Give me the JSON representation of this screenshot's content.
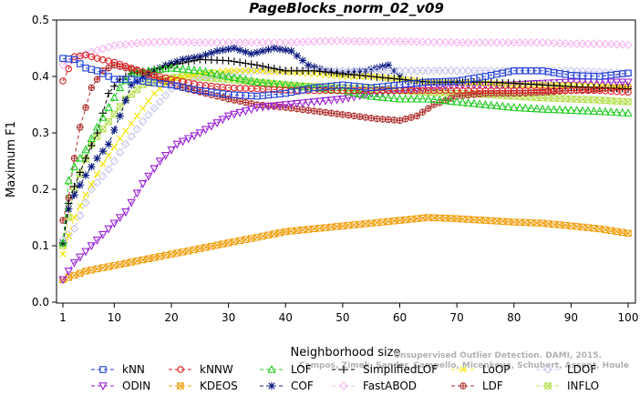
{
  "chart_data": {
    "type": "line",
    "title": "PageBlocks_norm_02_v09",
    "xlabel": "Neighborhood size",
    "ylabel": "Maximum F1",
    "xlim": [
      1,
      100
    ],
    "ylim": [
      0.0,
      0.5
    ],
    "x_ticks": [
      1,
      10,
      20,
      30,
      40,
      50,
      60,
      70,
      80,
      90,
      100
    ],
    "y_ticks": [
      "0.0",
      "0.1",
      "0.2",
      "0.3",
      "0.4",
      "0.5"
    ],
    "grid": false,
    "legend_position": "bottom",
    "watermark": [
      "Unsupervised Outlier Detection. DAMI, 2015.",
      "Campos, Zimek, Sander, Campello, Micenkova, Schubert, Assent, Houle"
    ],
    "series": [
      {
        "name": "kNN",
        "color": "#1f3fd6",
        "marker": "square",
        "points": [
          [
            1,
            0.432
          ],
          [
            3,
            0.43
          ],
          [
            5,
            0.415
          ],
          [
            7,
            0.41
          ],
          [
            10,
            0.395
          ],
          [
            13,
            0.395
          ],
          [
            16,
            0.39
          ],
          [
            20,
            0.385
          ],
          [
            25,
            0.375
          ],
          [
            30,
            0.368
          ],
          [
            35,
            0.365
          ],
          [
            40,
            0.37
          ],
          [
            45,
            0.38
          ],
          [
            50,
            0.385
          ],
          [
            55,
            0.38
          ],
          [
            60,
            0.385
          ],
          [
            65,
            0.39
          ],
          [
            70,
            0.392
          ],
          [
            75,
            0.4
          ],
          [
            80,
            0.41
          ],
          [
            85,
            0.41
          ],
          [
            90,
            0.402
          ],
          [
            95,
            0.4
          ],
          [
            100,
            0.406
          ]
        ]
      },
      {
        "name": "kNNW",
        "color": "#e02020",
        "marker": "circle",
        "points": [
          [
            1,
            0.392
          ],
          [
            3,
            0.435
          ],
          [
            5,
            0.438
          ],
          [
            7,
            0.432
          ],
          [
            10,
            0.425
          ],
          [
            13,
            0.415
          ],
          [
            16,
            0.405
          ],
          [
            20,
            0.395
          ],
          [
            25,
            0.385
          ],
          [
            30,
            0.38
          ],
          [
            35,
            0.378
          ],
          [
            40,
            0.376
          ],
          [
            45,
            0.375
          ],
          [
            50,
            0.375
          ],
          [
            55,
            0.375
          ],
          [
            60,
            0.375
          ],
          [
            65,
            0.375
          ],
          [
            70,
            0.375
          ],
          [
            75,
            0.375
          ],
          [
            80,
            0.375
          ],
          [
            85,
            0.375
          ],
          [
            90,
            0.375
          ],
          [
            95,
            0.375
          ],
          [
            100,
            0.372
          ]
        ]
      },
      {
        "name": "LOF",
        "color": "#22cc22",
        "marker": "triangle",
        "points": [
          [
            1,
            0.105
          ],
          [
            2,
            0.215
          ],
          [
            3,
            0.24
          ],
          [
            5,
            0.27
          ],
          [
            7,
            0.31
          ],
          [
            9,
            0.345
          ],
          [
            11,
            0.38
          ],
          [
            13,
            0.405
          ],
          [
            16,
            0.41
          ],
          [
            20,
            0.415
          ],
          [
            25,
            0.41
          ],
          [
            30,
            0.4
          ],
          [
            35,
            0.39
          ],
          [
            40,
            0.385
          ],
          [
            45,
            0.38
          ],
          [
            50,
            0.375
          ],
          [
            55,
            0.365
          ],
          [
            60,
            0.36
          ],
          [
            65,
            0.36
          ],
          [
            70,
            0.355
          ],
          [
            75,
            0.35
          ],
          [
            80,
            0.345
          ],
          [
            85,
            0.342
          ],
          [
            90,
            0.34
          ],
          [
            95,
            0.338
          ],
          [
            100,
            0.335
          ]
        ]
      },
      {
        "name": "SimplifiedLOF",
        "color": "#000000",
        "marker": "plus",
        "points": [
          [
            1,
            0.105
          ],
          [
            2,
            0.175
          ],
          [
            3,
            0.205
          ],
          [
            5,
            0.255
          ],
          [
            7,
            0.3
          ],
          [
            9,
            0.37
          ],
          [
            11,
            0.395
          ],
          [
            13,
            0.405
          ],
          [
            16,
            0.41
          ],
          [
            20,
            0.42
          ],
          [
            25,
            0.43
          ],
          [
            30,
            0.428
          ],
          [
            35,
            0.42
          ],
          [
            40,
            0.41
          ],
          [
            45,
            0.41
          ],
          [
            50,
            0.405
          ],
          [
            55,
            0.4
          ],
          [
            60,
            0.395
          ],
          [
            65,
            0.39
          ],
          [
            70,
            0.39
          ],
          [
            75,
            0.39
          ],
          [
            80,
            0.388
          ],
          [
            85,
            0.385
          ],
          [
            90,
            0.382
          ],
          [
            95,
            0.38
          ],
          [
            100,
            0.378
          ]
        ]
      },
      {
        "name": "LoOP",
        "color": "#f2e600",
        "marker": "x",
        "points": [
          [
            1,
            0.085
          ],
          [
            3,
            0.15
          ],
          [
            5,
            0.19
          ],
          [
            8,
            0.245
          ],
          [
            11,
            0.29
          ],
          [
            14,
            0.33
          ],
          [
            17,
            0.37
          ],
          [
            20,
            0.395
          ],
          [
            25,
            0.405
          ],
          [
            30,
            0.41
          ],
          [
            35,
            0.41
          ],
          [
            40,
            0.408
          ],
          [
            45,
            0.405
          ],
          [
            50,
            0.4
          ],
          [
            55,
            0.4
          ],
          [
            60,
            0.395
          ],
          [
            65,
            0.39
          ],
          [
            70,
            0.39
          ],
          [
            75,
            0.388
          ],
          [
            80,
            0.385
          ],
          [
            85,
            0.385
          ],
          [
            90,
            0.385
          ],
          [
            95,
            0.383
          ],
          [
            100,
            0.38
          ]
        ]
      },
      {
        "name": "LDOF",
        "color": "#c8c8f0",
        "marker": "diamond",
        "points": [
          [
            1,
            0.11
          ],
          [
            3,
            0.13
          ],
          [
            6,
            0.2
          ],
          [
            9,
            0.235
          ],
          [
            12,
            0.28
          ],
          [
            15,
            0.32
          ],
          [
            18,
            0.355
          ],
          [
            21,
            0.39
          ],
          [
            25,
            0.4
          ],
          [
            30,
            0.405
          ],
          [
            35,
            0.41
          ],
          [
            40,
            0.41
          ],
          [
            45,
            0.41
          ],
          [
            50,
            0.41
          ],
          [
            55,
            0.41
          ],
          [
            60,
            0.41
          ],
          [
            65,
            0.41
          ],
          [
            70,
            0.41
          ],
          [
            75,
            0.41
          ],
          [
            80,
            0.41
          ],
          [
            85,
            0.41
          ],
          [
            90,
            0.41
          ],
          [
            95,
            0.408
          ],
          [
            100,
            0.405
          ]
        ]
      },
      {
        "name": "ODIN",
        "color": "#9a22d6",
        "marker": "triangle-down",
        "points": [
          [
            1,
            0.04
          ],
          [
            3,
            0.07
          ],
          [
            6,
            0.1
          ],
          [
            9,
            0.13
          ],
          [
            12,
            0.16
          ],
          [
            15,
            0.21
          ],
          [
            18,
            0.25
          ],
          [
            21,
            0.28
          ],
          [
            25,
            0.3
          ],
          [
            30,
            0.33
          ],
          [
            35,
            0.345
          ],
          [
            40,
            0.35
          ],
          [
            45,
            0.355
          ],
          [
            50,
            0.36
          ],
          [
            55,
            0.37
          ],
          [
            60,
            0.375
          ],
          [
            65,
            0.38
          ],
          [
            70,
            0.385
          ],
          [
            75,
            0.385
          ],
          [
            80,
            0.385
          ],
          [
            85,
            0.388
          ],
          [
            90,
            0.39
          ],
          [
            95,
            0.39
          ],
          [
            100,
            0.39
          ]
        ]
      },
      {
        "name": "KDEOS",
        "color": "#f0a010",
        "marker": "square-x",
        "points": [
          [
            1,
            0.04
          ],
          [
            5,
            0.055
          ],
          [
            10,
            0.065
          ],
          [
            15,
            0.075
          ],
          [
            20,
            0.085
          ],
          [
            25,
            0.095
          ],
          [
            30,
            0.105
          ],
          [
            35,
            0.115
          ],
          [
            40,
            0.125
          ],
          [
            45,
            0.13
          ],
          [
            50,
            0.135
          ],
          [
            55,
            0.14
          ],
          [
            60,
            0.145
          ],
          [
            65,
            0.15
          ],
          [
            70,
            0.148
          ],
          [
            75,
            0.145
          ],
          [
            80,
            0.142
          ],
          [
            85,
            0.14
          ],
          [
            90,
            0.135
          ],
          [
            95,
            0.13
          ],
          [
            100,
            0.122
          ]
        ]
      },
      {
        "name": "COF",
        "color": "#0a1a80",
        "marker": "star",
        "points": [
          [
            1,
            0.105
          ],
          [
            2,
            0.165
          ],
          [
            3,
            0.19
          ],
          [
            5,
            0.225
          ],
          [
            7,
            0.255
          ],
          [
            9,
            0.28
          ],
          [
            11,
            0.33
          ],
          [
            13,
            0.385
          ],
          [
            16,
            0.405
          ],
          [
            19,
            0.42
          ],
          [
            22,
            0.43
          ],
          [
            25,
            0.435
          ],
          [
            28,
            0.445
          ],
          [
            31,
            0.45
          ],
          [
            34,
            0.44
          ],
          [
            38,
            0.45
          ],
          [
            41,
            0.445
          ],
          [
            44,
            0.42
          ],
          [
            47,
            0.41
          ],
          [
            50,
            0.405
          ],
          [
            54,
            0.41
          ],
          [
            58,
            0.42
          ],
          [
            60,
            0.4
          ]
        ]
      },
      {
        "name": "FastABOD",
        "color": "#f5b8f0",
        "marker": "diamond",
        "points": [
          [
            1,
            0.42
          ],
          [
            5,
            0.44
          ],
          [
            10,
            0.455
          ],
          [
            15,
            0.46
          ],
          [
            20,
            0.462
          ],
          [
            25,
            0.46
          ],
          [
            30,
            0.46
          ],
          [
            35,
            0.46
          ],
          [
            40,
            0.46
          ],
          [
            45,
            0.462
          ],
          [
            50,
            0.463
          ],
          [
            55,
            0.462
          ],
          [
            60,
            0.462
          ],
          [
            65,
            0.461
          ],
          [
            70,
            0.46
          ],
          [
            75,
            0.46
          ],
          [
            80,
            0.46
          ],
          [
            85,
            0.46
          ],
          [
            90,
            0.458
          ],
          [
            95,
            0.458
          ],
          [
            100,
            0.456
          ]
        ]
      },
      {
        "name": "LDF",
        "color": "#b03030",
        "marker": "circle-plus",
        "points": [
          [
            1,
            0.145
          ],
          [
            2,
            0.185
          ],
          [
            3,
            0.255
          ],
          [
            4,
            0.31
          ],
          [
            5,
            0.345
          ],
          [
            6,
            0.38
          ],
          [
            8,
            0.41
          ],
          [
            10,
            0.42
          ],
          [
            14,
            0.41
          ],
          [
            18,
            0.395
          ],
          [
            22,
            0.38
          ],
          [
            26,
            0.37
          ],
          [
            30,
            0.36
          ],
          [
            35,
            0.35
          ],
          [
            40,
            0.345
          ],
          [
            44,
            0.34
          ],
          [
            48,
            0.335
          ],
          [
            52,
            0.33
          ],
          [
            56,
            0.325
          ],
          [
            60,
            0.322
          ],
          [
            63,
            0.33
          ],
          [
            66,
            0.35
          ],
          [
            70,
            0.365
          ],
          [
            75,
            0.37
          ],
          [
            80,
            0.37
          ],
          [
            85,
            0.372
          ],
          [
            90,
            0.375
          ],
          [
            95,
            0.378
          ],
          [
            100,
            0.382
          ]
        ]
      },
      {
        "name": "INFLO",
        "color": "#b7e050",
        "marker": "square-x",
        "points": [
          [
            1,
            0.1
          ],
          [
            3,
            0.2
          ],
          [
            6,
            0.28
          ],
          [
            9,
            0.32
          ],
          [
            12,
            0.36
          ],
          [
            15,
            0.385
          ],
          [
            18,
            0.395
          ],
          [
            22,
            0.4
          ],
          [
            26,
            0.398
          ],
          [
            30,
            0.395
          ],
          [
            35,
            0.39
          ],
          [
            40,
            0.385
          ],
          [
            45,
            0.382
          ],
          [
            50,
            0.38
          ],
          [
            55,
            0.378
          ],
          [
            60,
            0.375
          ],
          [
            65,
            0.372
          ],
          [
            70,
            0.37
          ],
          [
            75,
            0.368
          ],
          [
            80,
            0.365
          ],
          [
            85,
            0.362
          ],
          [
            90,
            0.36
          ],
          [
            95,
            0.358
          ],
          [
            100,
            0.355
          ]
        ]
      }
    ]
  }
}
